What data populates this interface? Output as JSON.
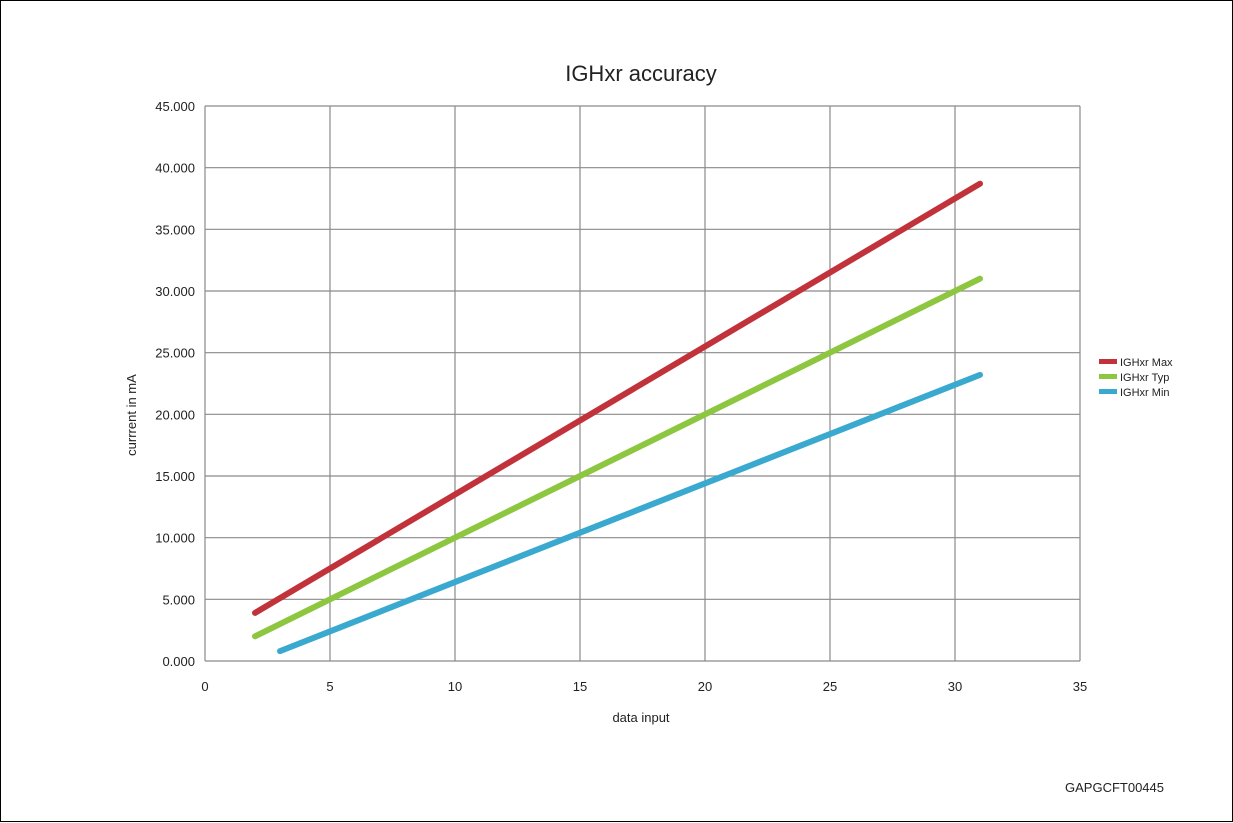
{
  "figure_id": "GAPGCFT00445",
  "chart_data": {
    "type": "line",
    "title": "IGHxr accuracy",
    "xlabel": "data input",
    "ylabel": "currrent  in mA",
    "xlim": [
      0,
      35
    ],
    "ylim": [
      0,
      45
    ],
    "x_ticks": [
      "0",
      "5",
      "10",
      "15",
      "20",
      "25",
      "30",
      "35"
    ],
    "x_tick_values": [
      0,
      5,
      10,
      15,
      20,
      25,
      30,
      35
    ],
    "y_ticks": [
      "0.000",
      "5.000",
      "10.000",
      "15.000",
      "20.000",
      "25.000",
      "30.000",
      "35.000",
      "40.000",
      "45.000"
    ],
    "y_tick_values": [
      0,
      5,
      10,
      15,
      20,
      25,
      30,
      35,
      40,
      45
    ],
    "grid": true,
    "legend_position": "right",
    "series": [
      {
        "name": "IGHxr Max",
        "color": "#c1323b",
        "x": [
          2,
          31
        ],
        "y": [
          3.9,
          38.7
        ]
      },
      {
        "name": "IGHxr Typ",
        "color": "#8dc63f",
        "x": [
          2,
          31
        ],
        "y": [
          2.0,
          31.0
        ]
      },
      {
        "name": "IGHxr Min",
        "color": "#3aa9cf",
        "x": [
          3,
          31
        ],
        "y": [
          0.8,
          23.2
        ]
      }
    ]
  }
}
